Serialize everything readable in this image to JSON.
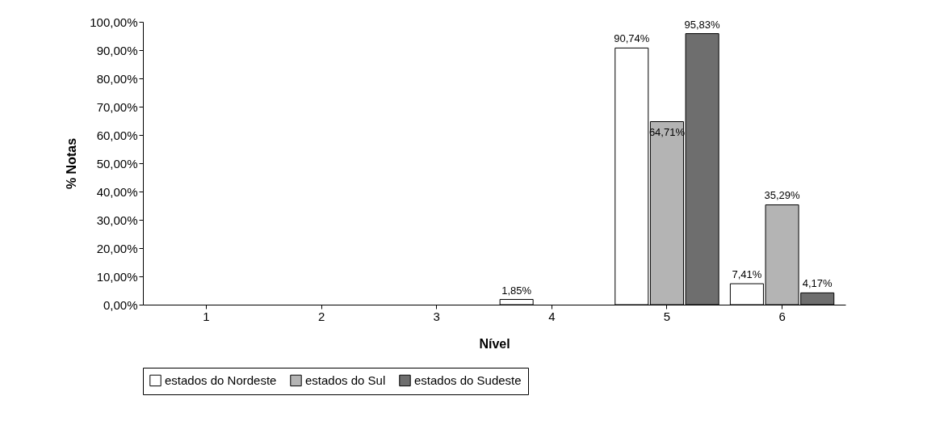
{
  "chart_data": {
    "type": "bar",
    "xlabel": "Nível",
    "ylabel": "% Notas",
    "categories": [
      "1",
      "2",
      "3",
      "4",
      "5",
      "6"
    ],
    "series": [
      {
        "name": "estados do Nordeste",
        "color": "#ffffff",
        "values": [
          0,
          0,
          0,
          1.85,
          90.74,
          7.41
        ],
        "value_labels": [
          null,
          null,
          null,
          "1,85%",
          "90,74%",
          "7,41%"
        ]
      },
      {
        "name": "estados do Sul",
        "color": "#b4b4b4",
        "values": [
          0,
          0,
          0,
          0,
          64.71,
          35.29
        ],
        "value_labels": [
          null,
          null,
          null,
          null,
          "64,71%",
          "35,29%"
        ]
      },
      {
        "name": "estados do Sudeste",
        "color": "#6e6e6e",
        "values": [
          0,
          0,
          0,
          0,
          95.83,
          4.17
        ],
        "value_labels": [
          null,
          null,
          null,
          null,
          "95,83%",
          "4,17%"
        ]
      }
    ],
    "ylim": [
      0,
      100
    ],
    "yticks": [
      {
        "value": 0,
        "label": "0,00%"
      },
      {
        "value": 10,
        "label": "10,00%"
      },
      {
        "value": 20,
        "label": "20,00%"
      },
      {
        "value": 30,
        "label": "30,00%"
      },
      {
        "value": 40,
        "label": "40,00%"
      },
      {
        "value": 50,
        "label": "50,00%"
      },
      {
        "value": 60,
        "label": "60,00%"
      },
      {
        "value": 70,
        "label": "70,00%"
      },
      {
        "value": 80,
        "label": "80,00%"
      },
      {
        "value": 90,
        "label": "90,00%"
      },
      {
        "value": 100,
        "label": "100,00%"
      }
    ],
    "grid": false,
    "legend": "bottom"
  }
}
